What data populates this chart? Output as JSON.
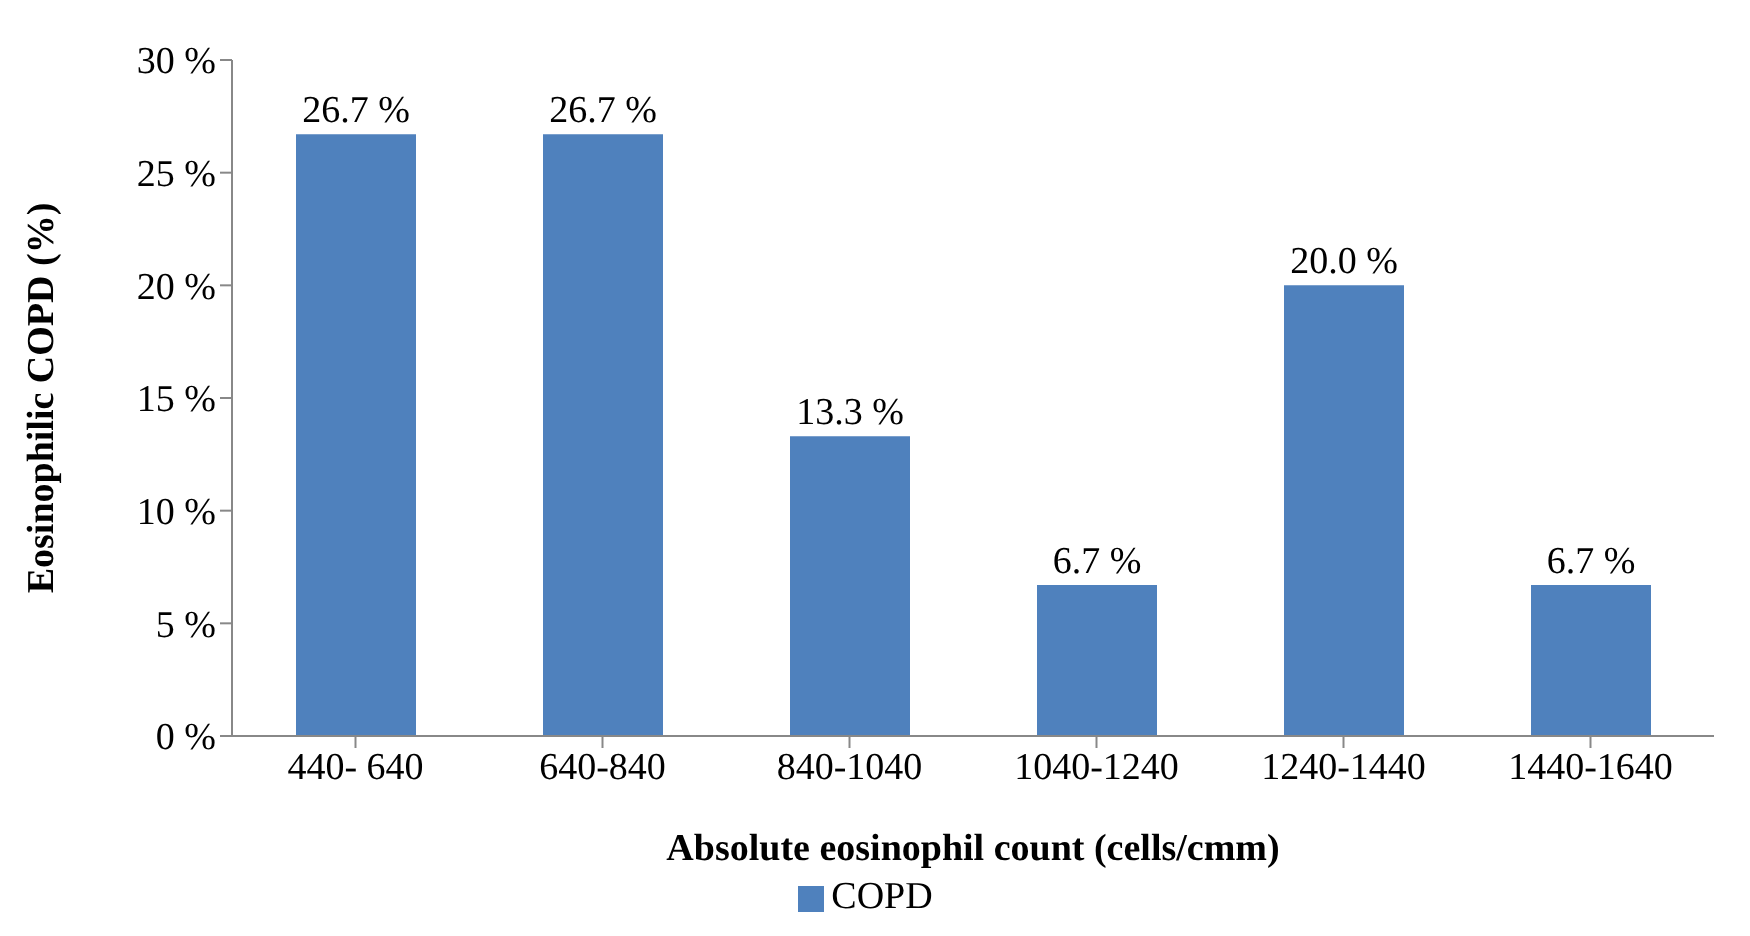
{
  "chart_data": {
    "type": "bar",
    "xlabel": "Absolute eosinophil count (cells/cmm)",
    "ylabel": "Eosinophilic  COPD (%)",
    "categories": [
      "440- 640",
      "640-840",
      "840-1040",
      "1040-1240",
      "1240-1440",
      "1440-1640"
    ],
    "series": [
      {
        "name": "COPD",
        "color": "#4f81bd",
        "values": [
          26.7,
          26.7,
          13.3,
          6.7,
          20.0,
          6.7
        ],
        "value_labels": [
          "26.7 %",
          "26.7 %",
          "13.3 %",
          "6.7 %",
          "20.0 %",
          "6.7 %"
        ]
      }
    ],
    "ylim": [
      0,
      30
    ],
    "yticks": [
      {
        "value": 0,
        "label": "0 %"
      },
      {
        "value": 5,
        "label": "5 %"
      },
      {
        "value": 10,
        "label": "10 %"
      },
      {
        "value": 15,
        "label": "15 %"
      },
      {
        "value": 20,
        "label": "20 %"
      },
      {
        "value": 25,
        "label": "25 %"
      },
      {
        "value": 30,
        "label": "30 %"
      }
    ],
    "legend": "bottom"
  }
}
